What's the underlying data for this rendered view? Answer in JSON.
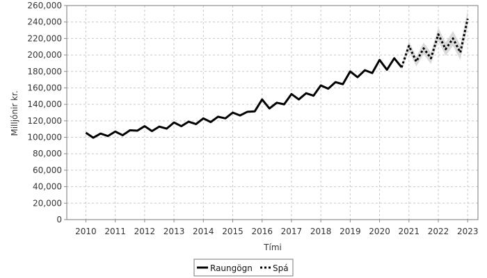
{
  "chart_data": {
    "type": "line",
    "xlabel": "Tími",
    "ylabel": "Milljónir kr.",
    "xlim": [
      2009.35,
      2023.35
    ],
    "ylim": [
      0,
      260000
    ],
    "x_ticks": [
      2010,
      2011,
      2012,
      2013,
      2014,
      2015,
      2016,
      2017,
      2018,
      2019,
      2020,
      2021,
      2022,
      2023
    ],
    "y_ticks": [
      0,
      20000,
      40000,
      60000,
      80000,
      100000,
      120000,
      140000,
      160000,
      180000,
      200000,
      220000,
      240000,
      260000
    ],
    "y_tick_labels": [
      "0",
      "20,000",
      "40,000",
      "60,000",
      "80,000",
      "100,000",
      "120,000",
      "140,000",
      "160,000",
      "180,000",
      "200,000",
      "220,000",
      "240,000",
      "260,000"
    ],
    "x_tick_labels": [
      "2010",
      "2011",
      "2012",
      "2013",
      "2014",
      "2015",
      "2016",
      "2017",
      "2018",
      "2019",
      "2020",
      "2021",
      "2022",
      "2023"
    ],
    "grid": true,
    "legend_position": "bottom-center",
    "series": [
      {
        "name": "Raungögn",
        "style": "solid",
        "color": "#000000",
        "x": [
          2010.0,
          2010.25,
          2010.5,
          2010.75,
          2011.0,
          2011.25,
          2011.5,
          2011.75,
          2012.0,
          2012.25,
          2012.5,
          2012.75,
          2013.0,
          2013.25,
          2013.5,
          2013.75,
          2014.0,
          2014.25,
          2014.5,
          2014.75,
          2015.0,
          2015.25,
          2015.5,
          2015.75,
          2016.0,
          2016.25,
          2016.5,
          2016.75,
          2017.0,
          2017.25,
          2017.5,
          2017.75,
          2018.0,
          2018.25,
          2018.5,
          2018.75,
          2019.0,
          2019.25,
          2019.5,
          2019.75,
          2020.0,
          2020.25,
          2020.5,
          2020.75
        ],
        "values": [
          105500,
          99500,
          104500,
          101500,
          107000,
          102500,
          108500,
          108000,
          113500,
          107500,
          113000,
          110500,
          118000,
          113500,
          119000,
          116000,
          123000,
          118500,
          125000,
          123000,
          130000,
          126500,
          131000,
          131500,
          146000,
          135000,
          142000,
          140000,
          152500,
          146000,
          153500,
          150500,
          163000,
          159000,
          167000,
          164500,
          180000,
          173000,
          181500,
          178000,
          194000,
          182000,
          196000,
          185000
        ]
      },
      {
        "name": "Spá",
        "style": "dotted",
        "color": "#000000",
        "x": [
          2020.75,
          2021.0,
          2021.25,
          2021.5,
          2021.75,
          2022.0,
          2022.25,
          2022.5,
          2022.75,
          2023.0
        ],
        "values": [
          185000,
          211000,
          192000,
          208000,
          196000,
          225000,
          207000,
          220000,
          203000,
          244000
        ],
        "lower": [
          181000,
          205000,
          186000,
          201000,
          189000,
          217000,
          199000,
          211000,
          194000,
          234000
        ],
        "upper": [
          189000,
          217000,
          198000,
          215000,
          203000,
          233000,
          215000,
          229000,
          212000,
          254000
        ],
        "band_color": "#d3d3d3"
      }
    ],
    "colors": {
      "axis": "#888888",
      "grid": "#c8c8c8",
      "frame": "#777777"
    }
  }
}
